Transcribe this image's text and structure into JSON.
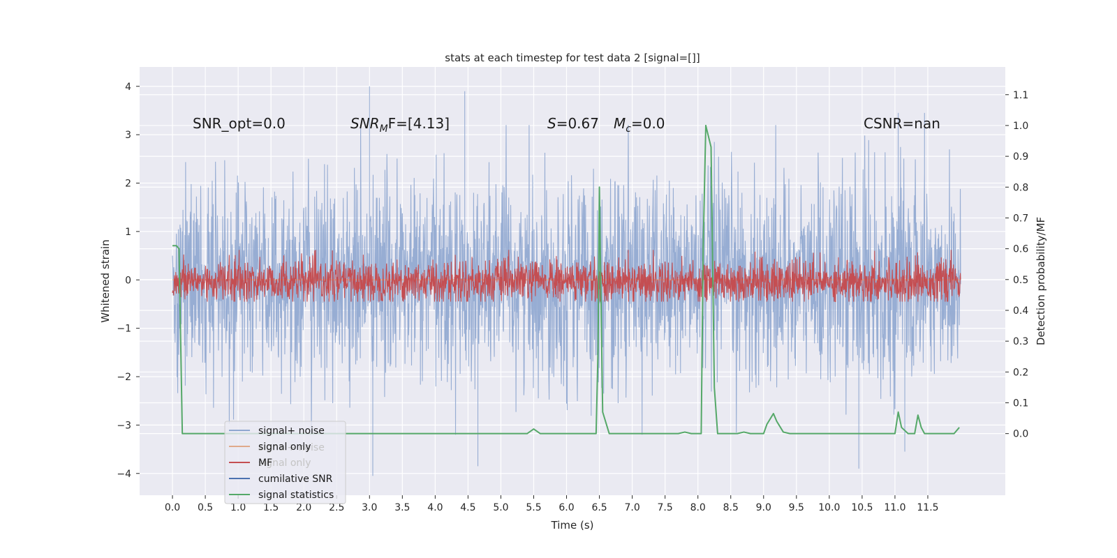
{
  "chart_data": {
    "type": "line",
    "title": "stats at each timestep for test data 2 [signal=[]]",
    "xlabel": "Time (s)",
    "ylabel": "Whitened strain",
    "y2label": "Detection probability/MF",
    "xlim": [
      -0.5,
      12.68
    ],
    "ylim": [
      -4.45,
      4.4
    ],
    "y2lim": [
      -0.2,
      1.19
    ],
    "x_ticks": [
      "0.0",
      "0.5",
      "1.0",
      "1.5",
      "2.0",
      "2.5",
      "3.0",
      "3.5",
      "4.0",
      "4.5",
      "5.0",
      "5.5",
      "6.0",
      "6.5",
      "7.0",
      "7.5",
      "8.0",
      "8.5",
      "9.0",
      "9.5",
      "10.0",
      "10.5",
      "11.0",
      "11.5"
    ],
    "y_ticks": [
      "-4",
      "-3",
      "-2",
      "-1",
      "0",
      "1",
      "2",
      "3",
      "4"
    ],
    "y2_ticks": [
      "0.0",
      "0.1",
      "0.2",
      "0.3",
      "0.4",
      "0.5",
      "0.6",
      "0.7",
      "0.8",
      "0.9",
      "1.0",
      "1.1"
    ],
    "grid": true,
    "legend_position": "bottom-left",
    "annotations": {
      "snr_opt": "SNR_opt=0.0",
      "snr_mf_main": "SNR",
      "snr_mf_sub": "M",
      "snr_mf_rest": "F=[4.13]",
      "s_sym": "S",
      "s_val": "=0.67",
      "mc_sym": "M",
      "mc_sub": "c",
      "mc_val": "=0.0",
      "csnr": "CSNR=nan"
    },
    "series": [
      {
        "name": "signal+ noise",
        "color": "#8fa7d0",
        "axis": "left",
        "x_range": [
          0.0,
          12.0
        ],
        "envelope": "noise",
        "peaks": [
          {
            "x": 3.0,
            "y": 4.0
          },
          {
            "x": 4.45,
            "y": 3.9
          },
          {
            "x": 11.05,
            "y": 3.45
          },
          {
            "x": 11.45,
            "y": 3.45
          },
          {
            "x": 3.05,
            "y": -4.05
          },
          {
            "x": 10.45,
            "y": -3.9
          },
          {
            "x": 4.65,
            "y": -3.85
          },
          {
            "x": 11.15,
            "y": -3.55
          }
        ]
      },
      {
        "name": "signal only",
        "color": "#e0a98a",
        "axis": "left",
        "x": [
          0.0,
          12.0
        ],
        "y": [
          0.0,
          0.0
        ]
      },
      {
        "name": "MF",
        "color": "#c44e52",
        "axis": "left",
        "x_range": [
          0.0,
          12.0
        ],
        "envelope": "noise"
      },
      {
        "name": "cumilative SNR",
        "color": "#4c72b0",
        "axis": "right",
        "x": [],
        "y": []
      },
      {
        "name": "signal statistics",
        "color": "#55a868",
        "axis": "right",
        "x": [
          0.0,
          0.06,
          0.1,
          0.15,
          0.25,
          0.35,
          1.0,
          2.0,
          3.0,
          4.0,
          5.0,
          5.4,
          5.5,
          5.6,
          5.7,
          6.0,
          6.45,
          6.48,
          6.5,
          6.52,
          6.55,
          6.65,
          6.8,
          7.0,
          7.5,
          7.7,
          7.8,
          7.9,
          8.05,
          8.08,
          8.12,
          8.2,
          8.25,
          8.3,
          8.4,
          8.6,
          8.7,
          8.8,
          9.0,
          9.05,
          9.15,
          9.2,
          9.3,
          9.4,
          9.5,
          10.0,
          10.5,
          11.0,
          11.05,
          11.1,
          11.2,
          11.3,
          11.35,
          11.4,
          11.45,
          11.5,
          11.7,
          11.9,
          11.98
        ],
        "y": [
          0.61,
          0.61,
          0.6,
          0.0,
          0.0,
          0.0,
          0.0,
          0.0,
          0.0,
          0.0,
          0.0,
          0.0,
          0.015,
          0.0,
          0.0,
          0.0,
          0.0,
          0.28,
          0.8,
          0.5,
          0.07,
          0.0,
          0.0,
          0.0,
          0.0,
          0.0,
          0.005,
          0.0,
          0.0,
          0.6,
          1.0,
          0.93,
          0.15,
          0.0,
          0.0,
          0.0,
          0.005,
          0.0,
          0.0,
          0.03,
          0.065,
          0.04,
          0.005,
          0.0,
          0.0,
          0.0,
          0.0,
          0.0,
          0.07,
          0.02,
          0.0,
          0.0,
          0.06,
          0.02,
          0.0,
          0.0,
          0.0,
          0.0,
          0.02
        ]
      }
    ]
  }
}
